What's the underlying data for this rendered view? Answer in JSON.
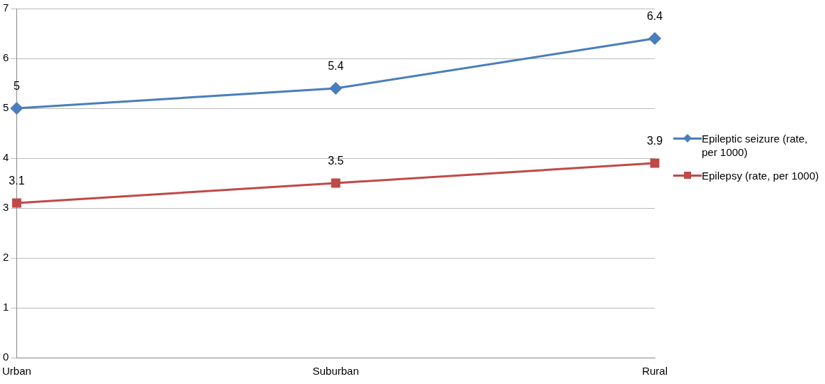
{
  "chart_data": {
    "type": "line",
    "categories": [
      "Urban",
      "Suburban",
      "Rural"
    ],
    "series": [
      {
        "name": "Epileptic seizure (rate, per 1000)",
        "color": "#4a7ebb",
        "marker": "diamond",
        "values": [
          5,
          5.4,
          6.4
        ]
      },
      {
        "name": "Epilepsy (rate, per 1000)",
        "color": "#be4b48",
        "marker": "square",
        "values": [
          3.1,
          3.5,
          3.9
        ]
      }
    ],
    "ylim": [
      0,
      7
    ],
    "yticks": [
      0,
      1,
      2,
      3,
      4,
      5,
      6,
      7
    ],
    "grid": "y",
    "legend": "right",
    "data_labels": true
  }
}
